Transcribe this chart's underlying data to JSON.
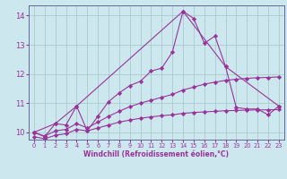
{
  "xlabel": "Windchill (Refroidissement éolien,°C)",
  "background_color": "#cce8ee",
  "grid_color": "#aacccc",
  "line_color": "#993399",
  "spine_color": "#666699",
  "xlim": [
    -0.5,
    23.5
  ],
  "ylim": [
    9.75,
    14.35
  ],
  "xticks": [
    0,
    1,
    2,
    3,
    4,
    5,
    6,
    7,
    8,
    9,
    10,
    11,
    12,
    13,
    14,
    15,
    16,
    17,
    18,
    19,
    20,
    21,
    22,
    23
  ],
  "yticks": [
    10,
    11,
    12,
    13,
    14
  ],
  "lines": [
    {
      "x": [
        0,
        1,
        2,
        3,
        4,
        5,
        6,
        7,
        8,
        9,
        10,
        11,
        12,
        13,
        14,
        15,
        16,
        17,
        18,
        19,
        20,
        21,
        22,
        23
      ],
      "y": [
        10.0,
        9.85,
        10.3,
        10.25,
        10.9,
        10.05,
        10.55,
        11.05,
        11.35,
        11.6,
        11.75,
        12.1,
        12.2,
        12.75,
        14.15,
        13.9,
        13.05,
        13.3,
        12.25,
        10.85,
        10.8,
        10.8,
        10.6,
        10.9
      ]
    },
    {
      "x": [
        0,
        2,
        4,
        14,
        18,
        23
      ],
      "y": [
        10.0,
        10.3,
        10.9,
        14.15,
        12.25,
        10.9
      ]
    },
    {
      "x": [
        0,
        1,
        2,
        3,
        4,
        5,
        6,
        7,
        8,
        9,
        10,
        11,
        12,
        13,
        14,
        15,
        16,
        17,
        18,
        19,
        20,
        21,
        22,
        23
      ],
      "y": [
        10.0,
        9.87,
        10.05,
        10.1,
        10.3,
        10.15,
        10.35,
        10.55,
        10.72,
        10.88,
        11.0,
        11.1,
        11.2,
        11.3,
        11.45,
        11.55,
        11.65,
        11.72,
        11.78,
        11.82,
        11.85,
        11.87,
        11.88,
        11.9
      ]
    },
    {
      "x": [
        0,
        1,
        2,
        3,
        4,
        5,
        6,
        7,
        8,
        9,
        10,
        11,
        12,
        13,
        14,
        15,
        16,
        17,
        18,
        19,
        20,
        21,
        22,
        23
      ],
      "y": [
        9.85,
        9.78,
        9.9,
        9.95,
        10.1,
        10.05,
        10.15,
        10.25,
        10.35,
        10.42,
        10.48,
        10.53,
        10.57,
        10.6,
        10.65,
        10.68,
        10.7,
        10.72,
        10.74,
        10.75,
        10.76,
        10.77,
        10.77,
        10.78
      ]
    }
  ],
  "marker": "D",
  "markersize": 2.2,
  "linewidth": 0.8
}
